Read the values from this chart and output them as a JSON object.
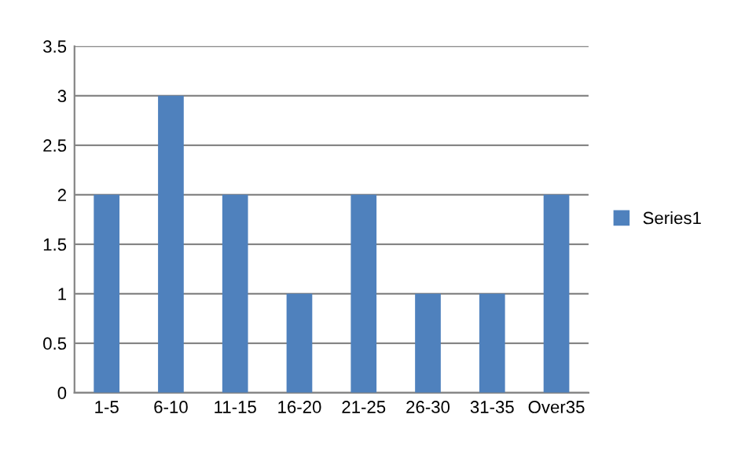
{
  "chart_data": {
    "type": "bar",
    "categories": [
      "1-5",
      "6-10",
      "11-15",
      "16-20",
      "21-25",
      "26-30",
      "31-35",
      "Over35"
    ],
    "series": [
      {
        "name": "Series1",
        "color": "#4f81bd",
        "values": [
          2,
          3,
          2,
          1,
          2,
          1,
          1,
          2
        ]
      }
    ],
    "ylim": [
      0,
      3.5
    ],
    "yticks": [
      0,
      0.5,
      1,
      1.5,
      2,
      2.5,
      3,
      3.5
    ],
    "grid": "y",
    "legend": "right"
  }
}
